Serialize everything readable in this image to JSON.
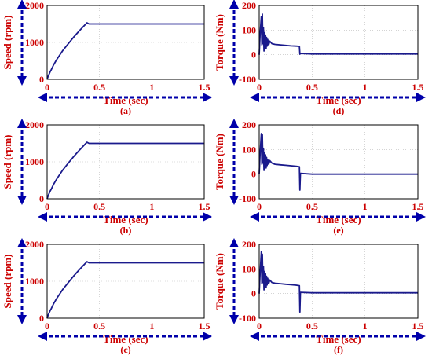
{
  "chart_data": [
    {
      "label": "(a)",
      "type": "line",
      "signal": "speed",
      "xlabel": "Time (sec)",
      "ylabel": "Speed (rpm)",
      "xlim": [
        0,
        1.5
      ],
      "ylim": [
        0,
        2000
      ],
      "xticks": [
        "0",
        "0.5",
        "1",
        "1.5"
      ],
      "yticks": [
        "0",
        "1000",
        "2000"
      ],
      "grid": true,
      "series": [
        {
          "x": [
            0,
            0.01,
            0.02,
            0.03,
            0.04,
            0.06,
            0.08,
            0.1,
            0.15,
            0.2,
            0.25,
            0.3,
            0.35,
            0.38,
            0.4,
            0.5,
            1.0,
            1.5
          ],
          "y": [
            0,
            80,
            150,
            210,
            260,
            380,
            480,
            570,
            780,
            960,
            1130,
            1290,
            1440,
            1530,
            1500,
            1500,
            1500,
            1500
          ]
        }
      ]
    },
    {
      "label": "(b)",
      "type": "line",
      "signal": "speed",
      "xlabel": "Time (sec)",
      "ylabel": "Speed (rpm)",
      "xlim": [
        0,
        1.5
      ],
      "ylim": [
        0,
        2000
      ],
      "xticks": [
        "0",
        "0.5",
        "1",
        "1.5"
      ],
      "yticks": [
        "0",
        "1000",
        "2000"
      ],
      "grid": true,
      "series": [
        {
          "x": [
            0,
            0.01,
            0.02,
            0.03,
            0.04,
            0.06,
            0.08,
            0.1,
            0.15,
            0.2,
            0.25,
            0.3,
            0.35,
            0.38,
            0.4,
            0.5,
            1.0,
            1.5
          ],
          "y": [
            0,
            80,
            150,
            210,
            260,
            380,
            480,
            570,
            780,
            960,
            1130,
            1290,
            1440,
            1530,
            1500,
            1500,
            1500,
            1500
          ]
        }
      ]
    },
    {
      "label": "(c)",
      "type": "line",
      "signal": "speed",
      "xlabel": "Time (sec)",
      "ylabel": "Speed (rpm)",
      "xlim": [
        0,
        1.5
      ],
      "ylim": [
        0,
        2000
      ],
      "xticks": [
        "0",
        "0.5",
        "1",
        "1.5"
      ],
      "yticks": [
        "0",
        "1000",
        "2000"
      ],
      "grid": true,
      "series": [
        {
          "x": [
            0,
            0.01,
            0.02,
            0.03,
            0.04,
            0.06,
            0.08,
            0.1,
            0.15,
            0.2,
            0.25,
            0.3,
            0.35,
            0.38,
            0.4,
            0.5,
            1.0,
            1.5
          ],
          "y": [
            0,
            80,
            150,
            210,
            260,
            380,
            480,
            570,
            780,
            960,
            1130,
            1290,
            1440,
            1530,
            1500,
            1500,
            1500,
            1500
          ]
        }
      ]
    },
    {
      "label": "(d)",
      "type": "line",
      "signal": "torque",
      "xlabel": "Time (sec)",
      "ylabel": "Torque (Nm)",
      "xlim": [
        0,
        1.5
      ],
      "ylim": [
        -100,
        200
      ],
      "xticks": [
        "0",
        "0.5",
        "1",
        "1.5"
      ],
      "yticks": [
        "-100",
        "0",
        "100",
        "200"
      ],
      "grid": true,
      "series": [
        {
          "x": [
            0,
            0.01,
            0.02,
            0.025,
            0.03,
            0.035,
            0.04,
            0.045,
            0.05,
            0.055,
            0.06,
            0.065,
            0.07,
            0.075,
            0.08,
            0.09,
            0.1,
            0.12,
            0.15,
            0.2,
            0.25,
            0.3,
            0.35,
            0.38,
            0.385,
            0.39,
            0.5,
            1.0,
            1.5
          ],
          "y": [
            0,
            90,
            155,
            40,
            165,
            45,
            110,
            15,
            90,
            35,
            80,
            25,
            70,
            35,
            62,
            40,
            55,
            45,
            42,
            40,
            38,
            36,
            35,
            34,
            2,
            5,
            3,
            3,
            3
          ]
        }
      ]
    },
    {
      "label": "(e)",
      "type": "line",
      "signal": "torque",
      "xlabel": "Time (sec)",
      "ylabel": "Torque (Nm)",
      "xlim": [
        0,
        1.5
      ],
      "ylim": [
        -100,
        200
      ],
      "xticks": [
        "0",
        "0.5",
        "1",
        "1.5"
      ],
      "yticks": [
        "-100",
        "0",
        "100",
        "200"
      ],
      "grid": true,
      "series": [
        {
          "x": [
            0,
            0.01,
            0.02,
            0.025,
            0.03,
            0.035,
            0.04,
            0.045,
            0.05,
            0.055,
            0.06,
            0.065,
            0.07,
            0.075,
            0.08,
            0.09,
            0.1,
            0.12,
            0.15,
            0.2,
            0.25,
            0.3,
            0.35,
            0.38,
            0.385,
            0.39,
            0.5,
            1.0,
            1.5
          ],
          "y": [
            0,
            90,
            165,
            40,
            160,
            45,
            105,
            15,
            88,
            35,
            78,
            25,
            68,
            35,
            60,
            40,
            55,
            45,
            40,
            38,
            36,
            34,
            32,
            30,
            -65,
            3,
            0,
            0,
            0
          ]
        }
      ]
    },
    {
      "label": "(f)",
      "type": "line",
      "signal": "torque",
      "xlabel": "Time (sec)",
      "ylabel": "Torque (Nm)",
      "xlim": [
        0,
        1.5
      ],
      "ylim": [
        -100,
        200
      ],
      "xticks": [
        "0",
        "0.5",
        "1",
        "1.5"
      ],
      "yticks": [
        "-100",
        "0",
        "100",
        "200"
      ],
      "grid": true,
      "series": [
        {
          "x": [
            0,
            0.01,
            0.02,
            0.025,
            0.03,
            0.035,
            0.04,
            0.045,
            0.05,
            0.055,
            0.06,
            0.065,
            0.07,
            0.075,
            0.08,
            0.09,
            0.1,
            0.12,
            0.15,
            0.2,
            0.25,
            0.3,
            0.35,
            0.38,
            0.385,
            0.39,
            0.5,
            1.0,
            1.5
          ],
          "y": [
            0,
            90,
            170,
            40,
            160,
            45,
            110,
            15,
            90,
            35,
            80,
            25,
            70,
            35,
            62,
            40,
            55,
            45,
            42,
            40,
            38,
            36,
            34,
            32,
            -75,
            5,
            3,
            3,
            3
          ]
        }
      ]
    }
  ],
  "style": {
    "line_color": "#1a1a8c",
    "label_color": "#cc0000",
    "arrow_color": "#0000aa",
    "frame_color": "#000000",
    "grid_color": "#bbbbbb"
  }
}
